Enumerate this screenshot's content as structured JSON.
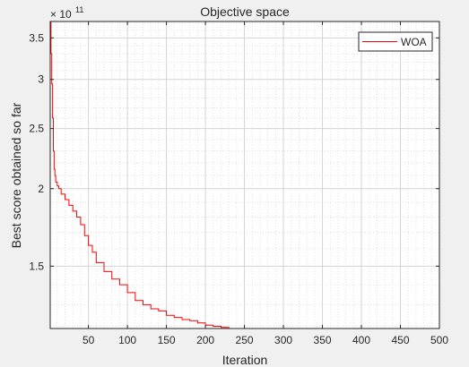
{
  "window": {
    "background": "#f0f0f0"
  },
  "chart_data": {
    "type": "line",
    "title": "Objective space",
    "xlabel": "Iteration",
    "ylabel": "Best score obtained so far",
    "exponent_label": {
      "base": "× 10",
      "power": "11"
    },
    "xlim": [
      1,
      500
    ],
    "ylim": [
      119000000000.0,
      372000000000.0
    ],
    "yscale": "log",
    "grid": true,
    "minor_grid": true,
    "legend": {
      "placement": "top-right",
      "entries": [
        "WOA"
      ]
    },
    "x_ticks": [
      50,
      100,
      150,
      200,
      250,
      300,
      350,
      400,
      450,
      500
    ],
    "x_tick_labels": [
      "50",
      "100",
      "150",
      "200",
      "250",
      "300",
      "350",
      "400",
      "450",
      "500"
    ],
    "y_ticks": [
      150000000000.0,
      200000000000.0,
      250000000000.0,
      300000000000.0,
      350000000000.0
    ],
    "y_tick_labels": [
      "1.5",
      "2",
      "2.5",
      "3",
      "3.5"
    ],
    "series": [
      {
        "name": "WOA",
        "color": "#ff0000",
        "x": [
          1,
          2,
          3,
          4,
          5,
          6,
          7,
          8,
          10,
          12,
          15,
          20,
          25,
          30,
          35,
          40,
          45,
          50,
          55,
          60,
          70,
          80,
          90,
          100,
          110,
          120,
          130,
          140,
          150,
          160,
          170,
          180,
          190,
          200,
          210,
          220,
          230,
          240,
          250,
          300,
          350,
          400,
          450,
          500
        ],
        "y": [
          372000000000.0,
          330000000000.0,
          295000000000.0,
          260000000000.0,
          230000000000.0,
          215000000000.0,
          210000000000.0,
          205000000000.0,
          202000000000.0,
          200000000000.0,
          196000000000.0,
          192000000000.0,
          188000000000.0,
          184000000000.0,
          180000000000.0,
          175000000000.0,
          168000000000.0,
          162000000000.0,
          158000000000.0,
          152000000000.0,
          147000000000.0,
          143000000000.0,
          140000000000.0,
          136000000000.0,
          132000000000.0,
          130000000000.0,
          128000000000.0,
          127000000000.0,
          125000000000.0,
          124000000000.0,
          123000000000.0,
          122500000000.0,
          121500000000.0,
          120500000000.0,
          120000000000.0,
          119500000000.0,
          119000000000.0,
          119000000000.0,
          119000000000.0,
          119000000000.0,
          119000000000.0,
          119000000000.0,
          119000000000.0,
          119000000000.0
        ]
      }
    ]
  }
}
